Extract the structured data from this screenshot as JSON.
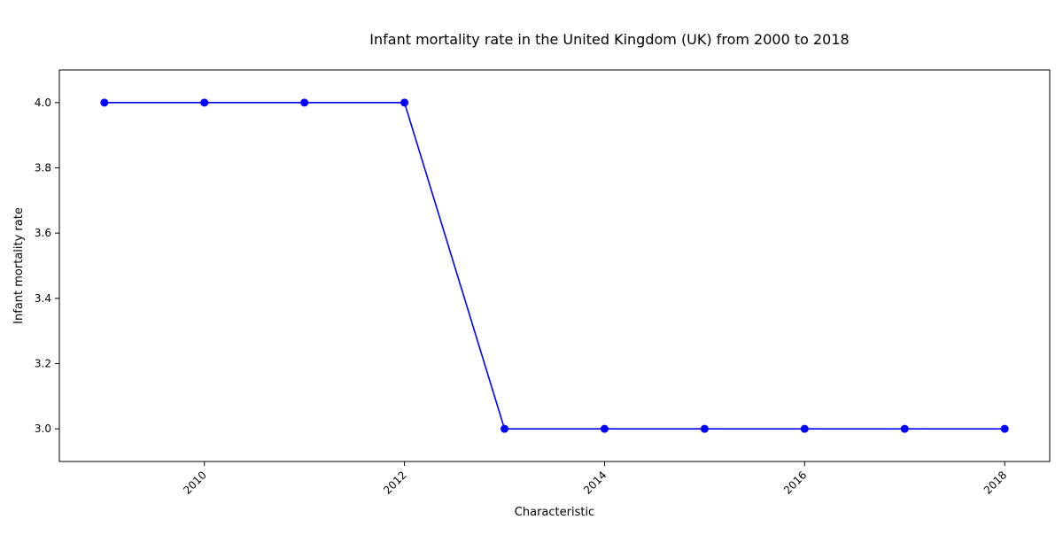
{
  "chart_data": {
    "type": "line",
    "title": "Infant mortality rate in the United Kingdom (UK) from 2000 to 2018",
    "xlabel": "Characteristic",
    "ylabel": "Infant mortality rate",
    "x": [
      2009,
      2010,
      2011,
      2012,
      2013,
      2014,
      2015,
      2016,
      2017,
      2018
    ],
    "series": [
      {
        "values": [
          4,
          4,
          4,
          4,
          3,
          3,
          3,
          3,
          3,
          3
        ],
        "color": "#0000ff",
        "marker": "circle"
      }
    ],
    "xlim": [
      2008.55,
      2018.45
    ],
    "ylim": [
      2.9,
      4.1
    ],
    "x_ticks": [
      2010,
      2012,
      2014,
      2016,
      2018
    ],
    "x_tick_labels": [
      "2010",
      "2012",
      "2014",
      "2016",
      "2018"
    ],
    "y_ticks": [
      3.0,
      3.2,
      3.4,
      3.6,
      3.8,
      4.0
    ],
    "y_tick_labels": [
      "3.0",
      "3.2",
      "3.4",
      "3.6",
      "3.8",
      "4.0"
    ],
    "grid": false,
    "legend": "none"
  }
}
